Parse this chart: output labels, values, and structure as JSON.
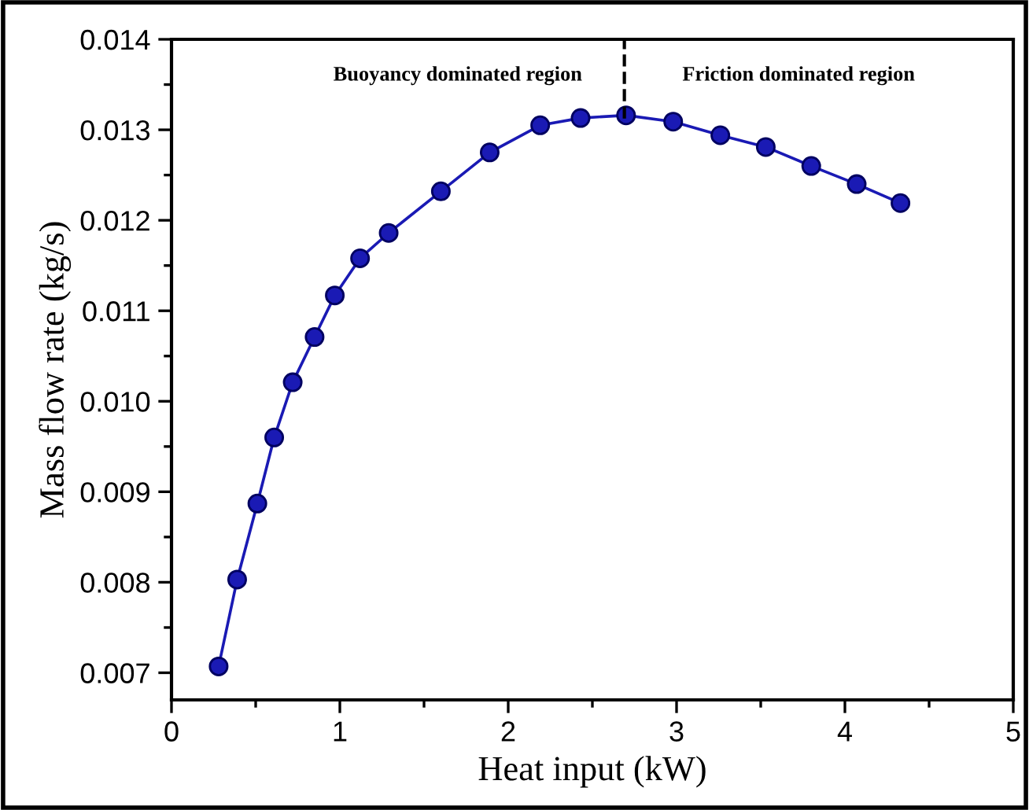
{
  "chart_data": {
    "type": "line",
    "xlabel": "Heat input (kW)",
    "ylabel": "Mass flow rate (kg/s)",
    "x": [
      0.28,
      0.39,
      0.51,
      0.61,
      0.72,
      0.85,
      0.97,
      1.12,
      1.29,
      1.6,
      1.89,
      2.19,
      2.43,
      2.7,
      2.98,
      3.26,
      3.53,
      3.8,
      4.07,
      4.33
    ],
    "series": [
      {
        "color": "#1a1ab4",
        "values": [
          0.00707,
          0.00803,
          0.00887,
          0.0096,
          0.01021,
          0.01071,
          0.01117,
          0.01158,
          0.01186,
          0.01232,
          0.01275,
          0.01305,
          0.01313,
          0.01316,
          0.01309,
          0.01294,
          0.01281,
          0.0126,
          0.0124,
          0.01219
        ]
      }
    ],
    "marker": "circle",
    "line_style": "solid",
    "xlim": [
      0,
      5
    ],
    "xticks": [
      0,
      1,
      2,
      3,
      4,
      5
    ],
    "ylim": [
      0.0067,
      0.014
    ],
    "yticks": [
      0.007,
      0.008,
      0.009,
      {
        "value": 0.01,
        "label": "0.010"
      },
      0.011,
      0.012,
      0.013,
      0.014
    ],
    "ref_lines": [
      {
        "axis": "x",
        "value": 2.69,
        "line_style": "dashed",
        "color": "#000000"
      }
    ],
    "annotations": [
      "Buoyancy dominated region",
      "Friction dominated region"
    ],
    "grid": false,
    "legend": false
  }
}
